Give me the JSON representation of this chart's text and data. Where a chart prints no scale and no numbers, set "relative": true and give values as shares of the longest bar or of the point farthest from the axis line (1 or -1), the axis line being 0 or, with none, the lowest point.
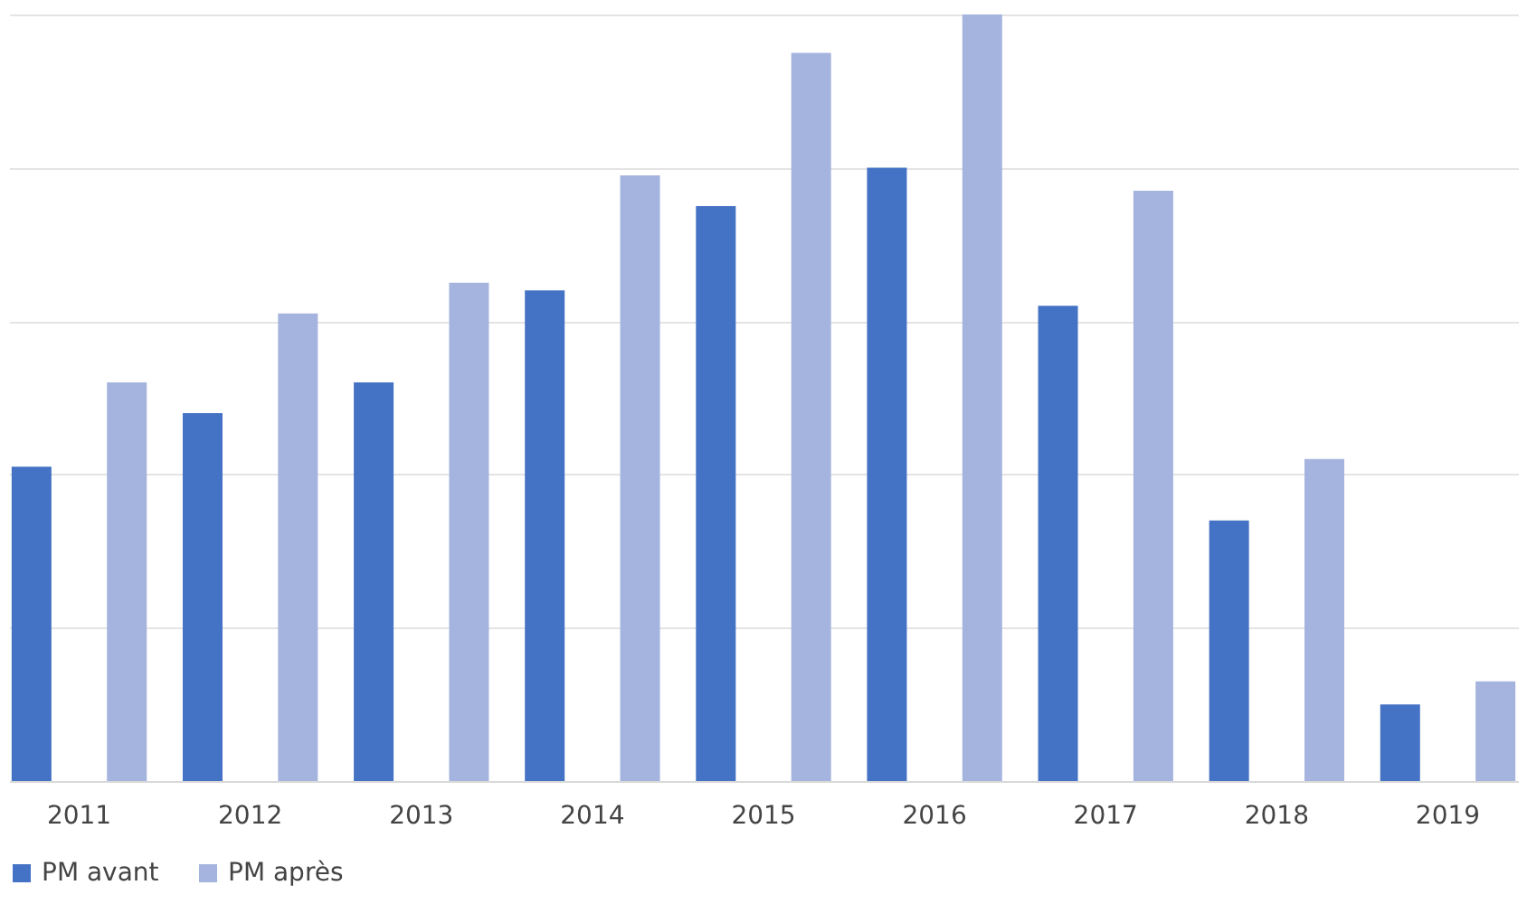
{
  "chart_data": {
    "type": "bar",
    "relative": true,
    "grid": "y",
    "legend": "bottom",
    "categories": [
      "2011",
      "2012",
      "2013",
      "2014",
      "2015",
      "2016",
      "2017",
      "2018",
      "2019"
    ],
    "series": [
      {
        "name": "PM avant",
        "color": "#4472c4",
        "values": [
          0.41,
          0.48,
          0.52,
          0.64,
          0.75,
          0.8,
          0.62,
          0.34,
          0.1
        ]
      },
      {
        "name": "PM après",
        "color": "#a5b4de",
        "values": [
          0.52,
          0.61,
          0.65,
          0.79,
          0.95,
          1,
          0.77,
          0.42,
          0.13
        ]
      }
    ]
  }
}
